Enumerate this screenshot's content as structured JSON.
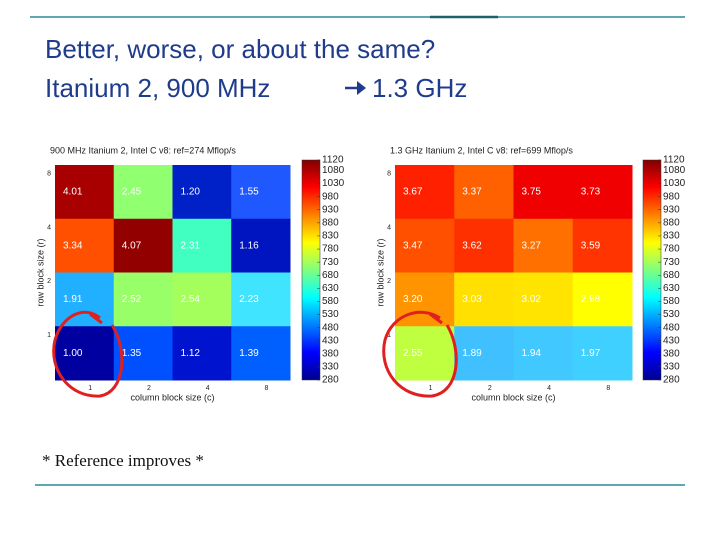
{
  "title": "Better, worse, or about the same?",
  "subtitle": [
    "Itanium 2, 900 MHz",
    "1.3 GHz"
  ],
  "note": "* Reference improves *",
  "chart_data": [
    {
      "type": "heatmap",
      "title": "900 MHz Itanium 2, Intel C v8: ref=274 Mflop/s",
      "xlabel": "column block size (c)",
      "ylabel": "row block size (r)",
      "x": [
        1,
        2,
        4,
        8
      ],
      "y": [
        8,
        4,
        2,
        1
      ],
      "values": [
        [
          4.01,
          2.45,
          1.2,
          1.55
        ],
        [
          3.34,
          4.07,
          2.31,
          1.16
        ],
        [
          1.91,
          2.52,
          2.54,
          2.23
        ],
        [
          1.0,
          1.35,
          1.12,
          1.39
        ]
      ],
      "value_labels": [
        [
          "4.01",
          "2.45",
          "1.20",
          "1.55"
        ],
        [
          "3.34",
          "4.07",
          "2.31",
          "1.16"
        ],
        [
          "1.91",
          "2.52",
          "2.54",
          "2.23"
        ],
        [
          "1.00",
          "1.35",
          "1.12",
          "1.39"
        ]
      ],
      "colors": [
        [
          "#a80000",
          "#90ff70",
          "#0020c8",
          "#2058ff"
        ],
        [
          "#ff5000",
          "#920000",
          "#40ffc0",
          "#0014c0"
        ],
        [
          "#20b0ff",
          "#98ff68",
          "#a4ff5c",
          "#40e4ff"
        ],
        [
          "#0000a0",
          "#0050ff",
          "#0014d0",
          "#0060ff"
        ]
      ],
      "clim": [
        280,
        1120
      ],
      "cticks": [
        280,
        330,
        380,
        430,
        480,
        530,
        580,
        630,
        680,
        730,
        780,
        830,
        880,
        930,
        980,
        1030,
        1080,
        1120
      ]
    },
    {
      "type": "heatmap",
      "title": "1.3 GHz Itanium 2, Intel C v8: ref=699 Mflop/s",
      "xlabel": "column block size (c)",
      "ylabel": "row block size (r)",
      "x": [
        1,
        2,
        4,
        8
      ],
      "y": [
        8,
        4,
        2,
        1
      ],
      "values": [
        [
          3.67,
          3.37,
          3.75,
          3.73
        ],
        [
          3.47,
          3.62,
          3.27,
          3.59
        ],
        [
          3.2,
          3.03,
          3.02,
          2.98
        ],
        [
          2.55,
          1.89,
          1.94,
          1.97
        ]
      ],
      "value_labels": [
        [
          "3.67",
          "3.37",
          "3.75",
          "3.73"
        ],
        [
          "3.47",
          "3.62",
          "3.27",
          "3.59"
        ],
        [
          "3.20",
          "3.03",
          "3.02",
          "2.98"
        ],
        [
          "2.55",
          "1.89",
          "1.94",
          "1.97"
        ]
      ],
      "colors": [
        [
          "#ff2000",
          "#ff6000",
          "#f00000",
          "#f00000"
        ],
        [
          "#ff5000",
          "#ff3000",
          "#ff7000",
          "#ff3400"
        ],
        [
          "#ff9400",
          "#ffe000",
          "#ffe400",
          "#ffff00"
        ],
        [
          "#c0ff40",
          "#40c0ff",
          "#40c8ff",
          "#40d0ff"
        ]
      ],
      "clim": [
        280,
        1120
      ],
      "cticks": [
        280,
        330,
        380,
        430,
        480,
        530,
        580,
        630,
        680,
        730,
        780,
        830,
        880,
        930,
        980,
        1030,
        1080,
        1120
      ]
    }
  ]
}
